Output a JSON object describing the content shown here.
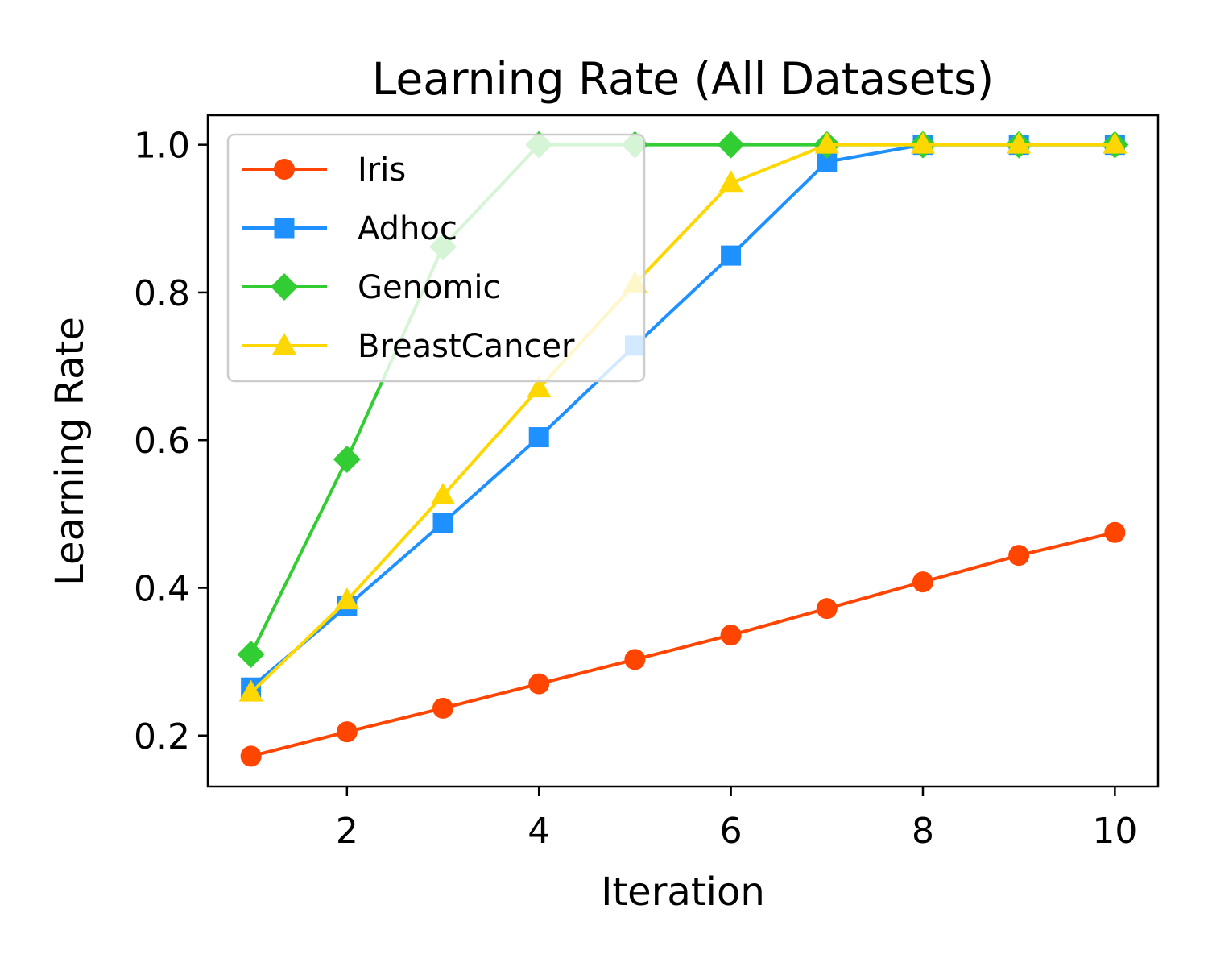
{
  "chart_data": {
    "type": "line",
    "title": "Learning Rate (All Datasets)",
    "xlabel": "Iteration",
    "ylabel": "Learning Rate",
    "xlim": [
      0.55,
      10.45
    ],
    "ylim": [
      0.131,
      1.04
    ],
    "xticks": [
      2,
      4,
      6,
      8,
      10
    ],
    "xtick_labels": [
      "2",
      "4",
      "6",
      "8",
      "10"
    ],
    "yticks": [
      0.2,
      0.4,
      0.6,
      0.8,
      1.0
    ],
    "ytick_labels": [
      "0.2",
      "0.4",
      "0.6",
      "0.8",
      "1.0"
    ],
    "grid": false,
    "legend_position": "top-left",
    "x": [
      1,
      2,
      3,
      4,
      5,
      6,
      7,
      8,
      9,
      10
    ],
    "series": [
      {
        "name": "Iris",
        "color": "#ff4500",
        "marker": "circle",
        "values": [
          0.172,
          0.205,
          0.237,
          0.27,
          0.303,
          0.336,
          0.372,
          0.408,
          0.444,
          0.475
        ]
      },
      {
        "name": "Adhoc",
        "color": "#1e90ff",
        "marker": "square",
        "values": [
          0.265,
          0.375,
          0.488,
          0.604,
          0.728,
          0.85,
          0.977,
          1.0,
          1.0,
          1.0
        ]
      },
      {
        "name": "Genomic",
        "color": "#32cd32",
        "marker": "diamond",
        "values": [
          0.31,
          0.574,
          0.862,
          1.0,
          1.0,
          1.0,
          1.0,
          1.0,
          1.0,
          1.0
        ]
      },
      {
        "name": "BreastCancer",
        "color": "#ffd700",
        "marker": "triangle",
        "values": [
          0.258,
          0.383,
          0.525,
          0.67,
          0.812,
          0.948,
          1.0,
          1.0,
          1.0,
          1.0
        ]
      }
    ]
  }
}
